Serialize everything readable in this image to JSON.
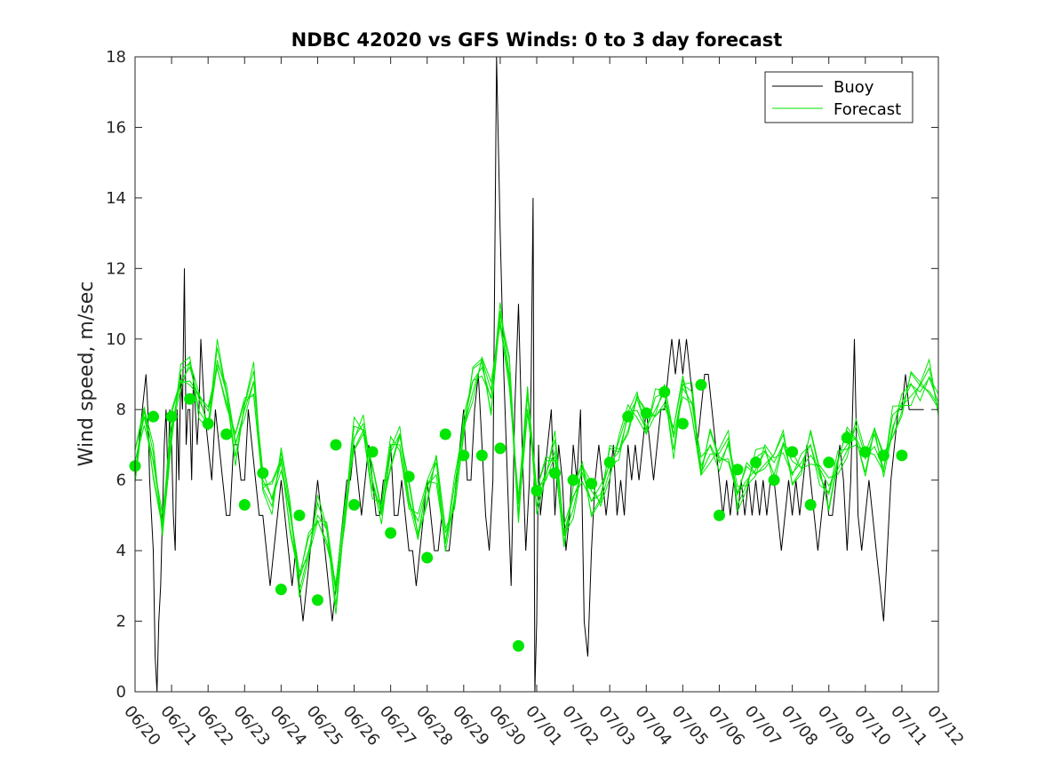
{
  "chart_data": {
    "type": "line",
    "title": "NDBC 42020 vs GFS Winds: 0 to 3 day forecast",
    "xlabel": "",
    "ylabel": "Wind speed, m/sec",
    "x_tick_labels": [
      "06/20",
      "06/21",
      "06/22",
      "06/23",
      "06/24",
      "06/25",
      "06/26",
      "06/27",
      "06/28",
      "06/29",
      "06/30",
      "07/01",
      "07/02",
      "07/03",
      "07/04",
      "07/05",
      "07/06",
      "07/07",
      "07/08",
      "07/09",
      "07/10",
      "07/11",
      "07/12"
    ],
    "y_ticks": [
      0,
      2,
      4,
      6,
      8,
      10,
      12,
      14,
      16,
      18
    ],
    "xlim_days": [
      0,
      22
    ],
    "ylim": [
      0,
      18
    ],
    "grid": false,
    "legend": {
      "position": "top-right",
      "entries": [
        "Buoy",
        "Forecast"
      ]
    },
    "colors": {
      "buoy": "#000000",
      "forecast": "#00e600",
      "analysis_points": "#00e600"
    },
    "series": [
      {
        "name": "Buoy",
        "x_days_since_0620": [
          0,
          0.1,
          0.2,
          0.3,
          0.35,
          0.4,
          0.5,
          0.55,
          0.6,
          0.65,
          0.7,
          0.75,
          0.8,
          0.85,
          0.9,
          0.95,
          1.0,
          1.05,
          1.1,
          1.15,
          1.2,
          1.25,
          1.3,
          1.35,
          1.4,
          1.45,
          1.5,
          1.55,
          1.6,
          1.65,
          1.7,
          1.75,
          1.8,
          1.85,
          1.9,
          2.0,
          2.1,
          2.2,
          2.3,
          2.4,
          2.5,
          2.6,
          2.7,
          2.8,
          2.9,
          3.0,
          3.1,
          3.2,
          3.3,
          3.4,
          3.5,
          3.6,
          3.7,
          3.8,
          3.9,
          4.0,
          4.1,
          4.2,
          4.3,
          4.4,
          4.5,
          4.6,
          4.7,
          4.8,
          4.9,
          5.0,
          5.1,
          5.2,
          5.3,
          5.4,
          5.5,
          5.6,
          5.7,
          5.8,
          5.9,
          6.0,
          6.1,
          6.2,
          6.3,
          6.4,
          6.5,
          6.6,
          6.7,
          6.8,
          6.9,
          7.0,
          7.1,
          7.2,
          7.3,
          7.4,
          7.5,
          7.6,
          7.7,
          7.8,
          7.9,
          8.0,
          8.1,
          8.2,
          8.3,
          8.4,
          8.5,
          8.6,
          8.7,
          8.8,
          8.9,
          9.0,
          9.1,
          9.2,
          9.3,
          9.4,
          9.5,
          9.6,
          9.7,
          9.8,
          9.9,
          10.0,
          10.1,
          10.2,
          10.3,
          10.4,
          10.5,
          10.6,
          10.7,
          10.8,
          10.85,
          10.9,
          10.95,
          11.0,
          11.05,
          11.1,
          11.2,
          11.3,
          11.4,
          11.5,
          11.6,
          11.7,
          11.8,
          11.9,
          12.0,
          12.1,
          12.2,
          12.3,
          12.4,
          12.5,
          12.6,
          12.7,
          12.8,
          12.9,
          13.0,
          13.1,
          13.2,
          13.3,
          13.4,
          13.5,
          13.6,
          13.7,
          13.8,
          13.9,
          14.0,
          14.1,
          14.2,
          14.3,
          14.4,
          14.5,
          14.6,
          14.7,
          14.8,
          14.9,
          15.0,
          15.1,
          15.2,
          15.3,
          15.4,
          15.5,
          15.6,
          15.7,
          15.8,
          15.9,
          16.0,
          16.1,
          16.2,
          16.3,
          16.4,
          16.5,
          16.6,
          16.7,
          16.8,
          16.9,
          17.0,
          17.1,
          17.2,
          17.3,
          17.4,
          17.5,
          17.6,
          17.7,
          17.8,
          17.9,
          18.0,
          18.1,
          18.2,
          18.3,
          18.4,
          18.5,
          18.6,
          18.7,
          18.8,
          18.9,
          19.0,
          19.1,
          19.2,
          19.3,
          19.4,
          19.5,
          19.6,
          19.7,
          19.8,
          19.9,
          20.0,
          20.1,
          20.2,
          20.3,
          20.4,
          20.5,
          20.6,
          20.7,
          20.8,
          20.9,
          21.0,
          21.1,
          21.2,
          21.3,
          21.4,
          21.5,
          21.6,
          21.7,
          21.8,
          21.9,
          22.0
        ],
        "values": [
          6,
          7,
          8,
          9,
          8,
          6,
          4,
          1,
          0,
          2,
          3,
          5,
          7,
          8,
          6,
          8,
          7,
          5,
          4,
          8,
          6,
          9,
          8,
          12,
          7,
          8,
          8,
          6,
          9,
          8,
          7,
          8,
          10,
          9,
          8,
          7,
          6,
          8,
          7,
          6,
          5,
          5,
          7,
          7,
          6,
          6,
          8,
          7,
          6,
          5,
          5,
          4,
          3,
          4,
          5,
          6,
          5,
          4,
          3,
          4,
          3,
          2,
          3,
          4,
          5,
          6,
          5,
          4,
          3,
          2,
          3,
          4,
          5,
          6,
          6,
          7,
          6,
          5,
          6,
          7,
          6,
          5,
          5,
          6,
          6,
          7,
          5,
          5,
          6,
          5,
          4,
          4,
          3,
          4,
          5,
          6,
          5,
          4,
          4,
          5,
          4,
          4,
          5,
          6,
          7,
          8,
          6,
          6,
          8,
          9,
          7,
          5,
          4,
          6,
          18,
          13,
          9,
          6,
          3,
          8,
          11,
          7,
          4,
          6,
          9,
          14,
          0,
          2,
          7,
          5,
          6,
          7,
          8,
          5,
          7,
          6,
          4,
          5,
          7,
          6,
          8,
          2,
          1,
          4,
          6,
          7,
          6,
          5,
          6,
          7,
          5,
          6,
          5,
          7,
          6,
          7,
          6,
          7,
          8,
          7,
          6,
          7,
          8,
          8,
          9,
          10,
          9,
          10,
          9,
          10,
          9,
          8,
          7,
          8,
          9,
          9,
          8,
          7,
          6,
          5,
          6,
          5,
          6,
          5,
          6,
          5,
          6,
          5,
          6,
          5,
          6,
          5,
          6,
          6,
          5,
          4,
          5,
          6,
          5,
          6,
          5,
          6,
          7,
          6,
          5,
          4,
          5,
          6,
          5,
          5,
          6,
          7,
          6,
          4,
          6,
          10,
          5,
          4,
          5,
          6,
          5,
          4,
          3,
          2,
          4,
          6,
          7,
          8,
          8,
          9,
          8,
          8,
          8,
          8,
          8
        ],
        "color": "#000000"
      },
      {
        "name": "Forecast",
        "x_days_since_0620": [
          0,
          0.25,
          0.5,
          0.75,
          1.0,
          1.25,
          1.5,
          1.75,
          2.0,
          2.25,
          2.5,
          2.75,
          3.0,
          3.25,
          3.5,
          3.75,
          4.0,
          4.25,
          4.5,
          4.75,
          5.0,
          5.25,
          5.5,
          5.75,
          6.0,
          6.25,
          6.5,
          6.75,
          7.0,
          7.25,
          7.5,
          7.75,
          8.0,
          8.25,
          8.5,
          8.75,
          9.0,
          9.25,
          9.5,
          9.75,
          10.0,
          10.25,
          10.5,
          10.75,
          11.0,
          11.25,
          11.5,
          11.75,
          12.0,
          12.25,
          12.5,
          12.75,
          13.0,
          13.25,
          13.5,
          13.75,
          14.0,
          14.25,
          14.5,
          14.75,
          15.0,
          15.25,
          15.5,
          15.75,
          16.0,
          16.25,
          16.5,
          16.75,
          17.0,
          17.25,
          17.5,
          17.75,
          18.0,
          18.25,
          18.5,
          18.75,
          19.0,
          19.25,
          19.5,
          19.75,
          20.0,
          20.25,
          20.5,
          20.75,
          21.0,
          21.25,
          21.5,
          21.75,
          22.0
        ],
        "values": [
          6.5,
          7.8,
          6.5,
          4.8,
          7.5,
          8.8,
          9.2,
          8.3,
          7.6,
          9.4,
          8.5,
          7.0,
          8.0,
          8.8,
          6.0,
          5.5,
          6.5,
          5.0,
          3.2,
          4.0,
          5.0,
          4.6,
          2.8,
          5.0,
          7.2,
          7.6,
          6.0,
          5.0,
          6.8,
          7.3,
          5.5,
          4.5,
          5.8,
          6.5,
          4.2,
          5.5,
          7.6,
          8.8,
          9.2,
          8.3,
          10.8,
          9.0,
          5.0,
          8.4,
          5.6,
          6.2,
          6.8,
          4.5,
          5.5,
          6.2,
          5.4,
          5.6,
          6.5,
          6.8,
          7.8,
          8.3,
          7.5,
          8.0,
          8.5,
          7.2,
          8.6,
          8.2,
          6.4,
          7.0,
          6.5,
          7.0,
          5.6,
          6.0,
          6.3,
          6.8,
          6.5,
          7.0,
          6.2,
          6.5,
          7.0,
          6.1,
          5.6,
          6.6,
          7.0,
          7.2,
          6.6,
          7.3,
          6.3,
          7.5,
          8.2,
          8.7,
          8.5,
          8.9,
          8.2
        ],
        "color": "#00e600"
      }
    ],
    "analysis_points": {
      "x_days_since_0620": [
        0,
        0.5,
        1.0,
        1.5,
        2.0,
        2.5,
        3.0,
        3.5,
        4.0,
        4.5,
        5.0,
        5.5,
        6.0,
        6.5,
        7.0,
        7.5,
        8.0,
        8.5,
        9.0,
        9.5,
        10.0,
        10.5,
        11.0,
        11.5,
        12.0,
        12.5,
        13.0,
        13.5,
        14.0,
        14.5,
        15.0,
        15.5,
        16.0,
        16.5,
        17.0,
        17.5,
        18.0,
        18.5,
        19.0,
        19.5,
        20.0,
        20.5,
        21.0
      ],
      "values": [
        6.4,
        7.8,
        7.8,
        8.3,
        7.6,
        7.3,
        5.3,
        6.2,
        2.9,
        5.0,
        2.6,
        7.0,
        5.3,
        6.8,
        4.5,
        6.1,
        3.8,
        7.3,
        6.7,
        6.7,
        6.9,
        1.3,
        5.7,
        6.2,
        6.0,
        5.9,
        6.5,
        7.8,
        7.9,
        8.5,
        7.6,
        8.7,
        5.0,
        6.3,
        6.5,
        6.0,
        6.8,
        5.3,
        6.5,
        7.2,
        6.8,
        6.7,
        6.7
      ]
    }
  }
}
